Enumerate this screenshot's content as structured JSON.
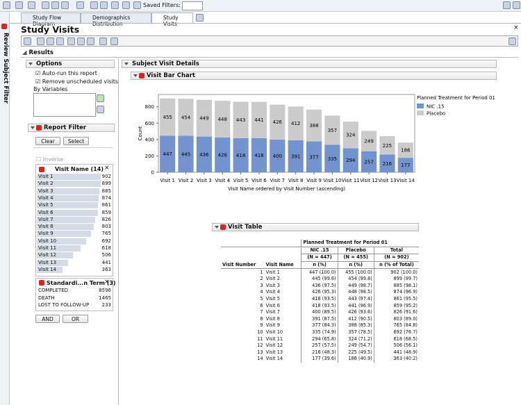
{
  "toolbar": {
    "saved_filters": "Saved Filters:"
  },
  "tabs": [
    "Study Flow Diagram",
    "Demographics Distribution",
    "Study Visits"
  ],
  "side_tab": "Review Subject Filter",
  "page_title": "Study Visits",
  "results": "Results",
  "options": {
    "title": "Options",
    "checkboxes": [
      "Auto-run this report",
      "Remove unscheduled visits"
    ],
    "by_variables": "By Variables"
  },
  "report_filter": {
    "title": "Report Filter",
    "buttons": [
      "Clear",
      "Select"
    ],
    "inverse": "Inverse",
    "visit_name": {
      "title": "Visit Name (14)",
      "items": [
        {
          "label": "Visit 1",
          "count": 902
        },
        {
          "label": "Visit 2",
          "count": 899
        },
        {
          "label": "Visit 3",
          "count": 885
        },
        {
          "label": "Visit 4",
          "count": 874
        },
        {
          "label": "Visit 5",
          "count": 861
        },
        {
          "label": "Visit 6",
          "count": 859
        },
        {
          "label": "Visit 7",
          "count": 826
        },
        {
          "label": "Visit 8",
          "count": 803
        },
        {
          "label": "Visit 9",
          "count": 765
        },
        {
          "label": "Visit 10",
          "count": 692
        },
        {
          "label": "Visit 11",
          "count": 618
        },
        {
          "label": "Visit 12",
          "count": 506
        },
        {
          "label": "Visit 13",
          "count": 441
        },
        {
          "label": "Visit 14",
          "count": 363
        }
      ]
    },
    "term": {
      "title": "Standardi...n Term (3)",
      "items": [
        {
          "label": "COMPLETED",
          "count": 8596
        },
        {
          "label": "DEATH",
          "count": 1465
        },
        {
          "label": "LOST TO FOLLOW-UP",
          "count": 233
        }
      ]
    },
    "logic_buttons": [
      "AND",
      "OR"
    ]
  },
  "subject_visit_details": "Subject Visit Details",
  "bar_chart_header": "Visit Bar Chart",
  "chart_data": {
    "type": "stacked_bar",
    "categories": [
      "Visit 1",
      "Visit 2",
      "Visit 3",
      "Visit 4",
      "Visit 5",
      "Visit 6",
      "Visit 7",
      "Visit 8",
      "Visit 9",
      "Visit 10",
      "Visit 11",
      "Visit 12",
      "Visit 13",
      "Visit 14"
    ],
    "series": [
      {
        "name": "NIC .15",
        "color": "#7392d0",
        "values": [
          447,
          445,
          436,
          426,
          418,
          418,
          400,
          391,
          377,
          335,
          294,
          257,
          216,
          177
        ]
      },
      {
        "name": "Placebo",
        "color": "#cbcbcb",
        "values": [
          455,
          454,
          449,
          448,
          443,
          441,
          426,
          412,
          388,
          357,
          324,
          249,
          225,
          186
        ]
      }
    ],
    "x_label": "Visit Name ordered by Visit Number (ascending)",
    "y_label": "Count",
    "ylim": [
      0,
      950
    ],
    "yticks": [
      0,
      200,
      400,
      600,
      800
    ],
    "legend_title": "Planned Treatment for Period 01",
    "legend": "right",
    "grid": false
  },
  "visit_table": {
    "title": "Visit Table",
    "group_header": "Planned Treatment for Period 01",
    "groups": [
      "NIC .15",
      "Placebo",
      "Total"
    ],
    "group_n": [
      "(N = 447)",
      "(N = 455)",
      "(N = 902)"
    ],
    "columns": [
      "Visit Number",
      "Visit Name",
      "n (%)",
      "n (%)",
      "n (% of Total)"
    ],
    "rows": [
      [
        "1",
        "Visit 1",
        "447 (100.0)",
        "455 (100.0)",
        "902 (100.0)"
      ],
      [
        "2",
        "Visit 2",
        "445 (99.6)",
        "454 (99.8)",
        "899 (99.7)"
      ],
      [
        "3",
        "Visit 3",
        "436 (97.5)",
        "449 (98.7)",
        "885 (98.1)"
      ],
      [
        "4",
        "Visit 4",
        "426 (95.3)",
        "448 (98.5)",
        "874 (96.9)"
      ],
      [
        "5",
        "Visit 5",
        "418 (93.5)",
        "443 (97.4)",
        "861 (95.5)"
      ],
      [
        "6",
        "Visit 6",
        "418 (93.5)",
        "441 (96.9)",
        "859 (95.2)"
      ],
      [
        "7",
        "Visit 7",
        "400 (89.5)",
        "426 (93.6)",
        "826 (91.6)"
      ],
      [
        "8",
        "Visit 8",
        "391 (87.5)",
        "412 (90.5)",
        "803 (89.0)"
      ],
      [
        "9",
        "Visit 9",
        "377 (84.3)",
        "388 (85.3)",
        "765 (84.8)"
      ],
      [
        "10",
        "Visit 10",
        "335 (74.9)",
        "357 (78.5)",
        "692 (76.7)"
      ],
      [
        "11",
        "Visit 11",
        "294 (65.8)",
        "324 (71.2)",
        "618 (68.5)"
      ],
      [
        "12",
        "Visit 12",
        "257 (57.5)",
        "249 (54.7)",
        "506 (56.1)"
      ],
      [
        "13",
        "Visit 13",
        "216 (48.3)",
        "225 (49.5)",
        "441 (48.9)"
      ],
      [
        "14",
        "Visit 14",
        "177 (39.6)",
        "186 (40.9)",
        "363 (40.2)"
      ]
    ]
  }
}
